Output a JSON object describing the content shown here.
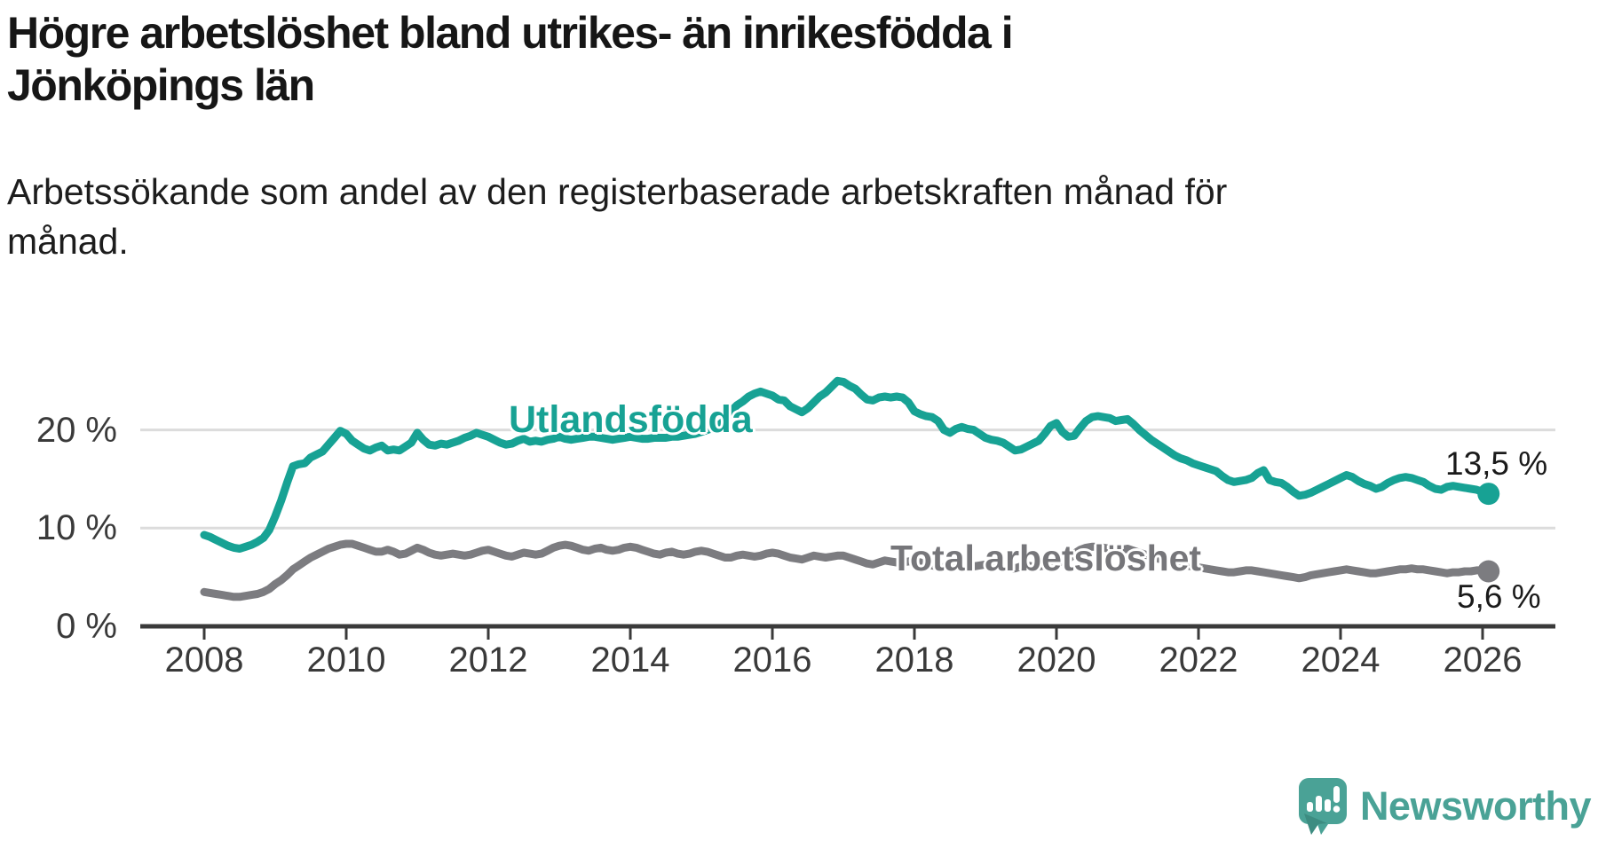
{
  "title": "Högre arbetslöshet bland utrikes- än inrikesfödda i Jönköpings län",
  "subtitle": "Arbetssökande som andel av den registerbaserade arbetskraften månad för månad.",
  "colors": {
    "foreign_born_line": "#17a294",
    "total_line": "#7c7c80",
    "gridline": "#dcdcdc",
    "axis": "#3a3a3a",
    "axis_text": "#3a3a3a",
    "title_text": "#161616",
    "brand_teal": "#4aa296"
  },
  "branding": {
    "logo_icon": "newsworthy-speech-bubble-bar-chart-icon",
    "logo_text": "Newsworthy"
  },
  "chart_data": {
    "type": "line",
    "title": "Högre arbetslöshet bland utrikes- än inrikesfödda i Jönköpings län",
    "subtitle": "Arbetssökande som andel av den registerbaserade arbetskraften månad för månad.",
    "x_axis": {
      "ticks": [
        2008,
        2010,
        2012,
        2014,
        2016,
        2018,
        2020,
        2022,
        2024,
        2026
      ],
      "range": [
        2007.1,
        2027.0
      ]
    },
    "y_axis": {
      "unit": "%",
      "gridlines": [
        10,
        20
      ],
      "ticks": [
        {
          "value": 20,
          "label": "20 %"
        },
        {
          "value": 10,
          "label": "10 %"
        },
        {
          "value": 0,
          "label": "0 %"
        }
      ],
      "range": [
        0,
        26.5
      ]
    },
    "legend_position": "inline-labels",
    "grid": "horizontal-only",
    "series": [
      {
        "name": "Utlandsfödda",
        "color": "#17a294",
        "end_label": "13,5 %",
        "last_value": 13.5,
        "start_year": 2008,
        "interval_months": 1,
        "values": [
          9.3,
          9.1,
          8.8,
          8.5,
          8.2,
          8.0,
          7.9,
          8.1,
          8.3,
          8.6,
          9.0,
          9.8,
          11.2,
          12.8,
          14.6,
          16.3,
          16.5,
          16.6,
          17.2,
          17.5,
          17.8,
          18.5,
          19.2,
          19.9,
          19.6,
          18.9,
          18.5,
          18.1,
          17.9,
          18.2,
          18.4,
          17.9,
          18.0,
          17.9,
          18.3,
          18.7,
          19.7,
          19.0,
          18.5,
          18.4,
          18.6,
          18.5,
          18.7,
          18.9,
          19.2,
          19.4,
          19.7,
          19.5,
          19.3,
          19.0,
          18.7,
          18.5,
          18.6,
          18.9,
          19.1,
          18.8,
          18.9,
          18.8,
          19.0,
          19.1,
          19.3,
          19.1,
          19.0,
          19.1,
          19.2,
          19.3,
          19.3,
          19.2,
          19.1,
          19.0,
          19.1,
          19.2,
          19.3,
          19.2,
          19.1,
          19.1,
          19.2,
          19.2,
          19.2,
          19.3,
          19.3,
          19.4,
          19.5,
          19.6,
          19.8,
          20.0,
          20.2,
          20.5,
          21.0,
          21.9,
          22.5,
          22.9,
          23.4,
          23.7,
          23.9,
          23.7,
          23.5,
          23.1,
          23.0,
          22.4,
          22.1,
          21.8,
          22.2,
          22.8,
          23.4,
          23.8,
          24.4,
          25.0,
          24.9,
          24.5,
          24.2,
          23.6,
          23.1,
          23.0,
          23.3,
          23.4,
          23.3,
          23.4,
          23.3,
          22.8,
          21.9,
          21.6,
          21.4,
          21.3,
          20.9,
          20.0,
          19.7,
          20.1,
          20.3,
          20.1,
          20.0,
          19.6,
          19.2,
          19.0,
          18.9,
          18.7,
          18.3,
          17.9,
          18.0,
          18.3,
          18.6,
          18.9,
          19.6,
          20.4,
          20.7,
          19.8,
          19.3,
          19.4,
          20.2,
          20.9,
          21.3,
          21.4,
          21.3,
          21.2,
          20.9,
          21.0,
          21.1,
          20.6,
          20.0,
          19.5,
          19.0,
          18.6,
          18.2,
          17.8,
          17.4,
          17.1,
          16.9,
          16.6,
          16.4,
          16.2,
          16.0,
          15.8,
          15.3,
          14.9,
          14.7,
          14.8,
          14.9,
          15.1,
          15.6,
          15.9,
          14.9,
          14.7,
          14.6,
          14.2,
          13.7,
          13.3,
          13.4,
          13.6,
          13.9,
          14.2,
          14.5,
          14.8,
          15.1,
          15.4,
          15.2,
          14.8,
          14.5,
          14.3,
          14.0,
          14.2,
          14.6,
          14.9,
          15.1,
          15.2,
          15.1,
          14.9,
          14.7,
          14.3,
          14.0,
          13.9,
          14.2,
          14.3,
          14.2,
          14.1,
          14.0,
          13.9,
          13.7,
          13.5
        ]
      },
      {
        "name": "Total arbetslöshet",
        "color": "#7c7c80",
        "end_label": "5,6 %",
        "last_value": 5.6,
        "start_year": 2008,
        "interval_months": 1,
        "values": [
          3.5,
          3.4,
          3.3,
          3.2,
          3.1,
          3.0,
          3.0,
          3.1,
          3.2,
          3.3,
          3.5,
          3.8,
          4.3,
          4.7,
          5.2,
          5.8,
          6.2,
          6.6,
          7.0,
          7.3,
          7.6,
          7.9,
          8.1,
          8.3,
          8.4,
          8.4,
          8.2,
          8.0,
          7.8,
          7.6,
          7.6,
          7.8,
          7.6,
          7.3,
          7.4,
          7.7,
          8.0,
          7.8,
          7.5,
          7.3,
          7.2,
          7.3,
          7.4,
          7.3,
          7.2,
          7.3,
          7.5,
          7.7,
          7.8,
          7.6,
          7.4,
          7.2,
          7.1,
          7.3,
          7.5,
          7.4,
          7.3,
          7.4,
          7.7,
          8.0,
          8.2,
          8.3,
          8.2,
          8.0,
          7.8,
          7.7,
          7.9,
          8.0,
          7.8,
          7.7,
          7.8,
          8.0,
          8.1,
          8.0,
          7.8,
          7.6,
          7.4,
          7.3,
          7.5,
          7.6,
          7.4,
          7.3,
          7.4,
          7.6,
          7.7,
          7.6,
          7.4,
          7.2,
          7.0,
          7.0,
          7.2,
          7.3,
          7.2,
          7.1,
          7.2,
          7.4,
          7.5,
          7.4,
          7.2,
          7.0,
          6.9,
          6.8,
          7.0,
          7.2,
          7.1,
          7.0,
          7.1,
          7.2,
          7.2,
          7.0,
          6.8,
          6.6,
          6.4,
          6.3,
          6.5,
          6.7,
          6.6,
          6.5,
          6.5,
          6.6,
          6.6,
          6.5,
          6.3,
          6.2,
          6.1,
          6.0,
          6.2,
          6.3,
          6.2,
          6.1,
          6.1,
          6.2,
          6.3,
          6.2,
          6.1,
          6.0,
          5.9,
          5.9,
          6.1,
          6.2,
          6.1,
          6.1,
          6.2,
          6.4,
          6.5,
          6.6,
          6.8,
          7.4,
          7.8,
          8.0,
          8.1,
          8.1,
          8.0,
          7.9,
          7.8,
          7.8,
          7.9,
          7.7,
          7.5,
          7.3,
          7.1,
          6.9,
          6.8,
          6.7,
          6.5,
          6.3,
          6.2,
          6.1,
          6.0,
          5.9,
          5.8,
          5.7,
          5.6,
          5.5,
          5.5,
          5.6,
          5.7,
          5.7,
          5.6,
          5.5,
          5.4,
          5.3,
          5.2,
          5.1,
          5.0,
          4.9,
          5.0,
          5.2,
          5.3,
          5.4,
          5.5,
          5.6,
          5.7,
          5.8,
          5.7,
          5.6,
          5.5,
          5.4,
          5.4,
          5.5,
          5.6,
          5.7,
          5.8,
          5.8,
          5.9,
          5.8,
          5.8,
          5.7,
          5.6,
          5.5,
          5.4,
          5.5,
          5.5,
          5.6,
          5.6,
          5.7,
          5.7,
          5.6
        ]
      }
    ]
  }
}
